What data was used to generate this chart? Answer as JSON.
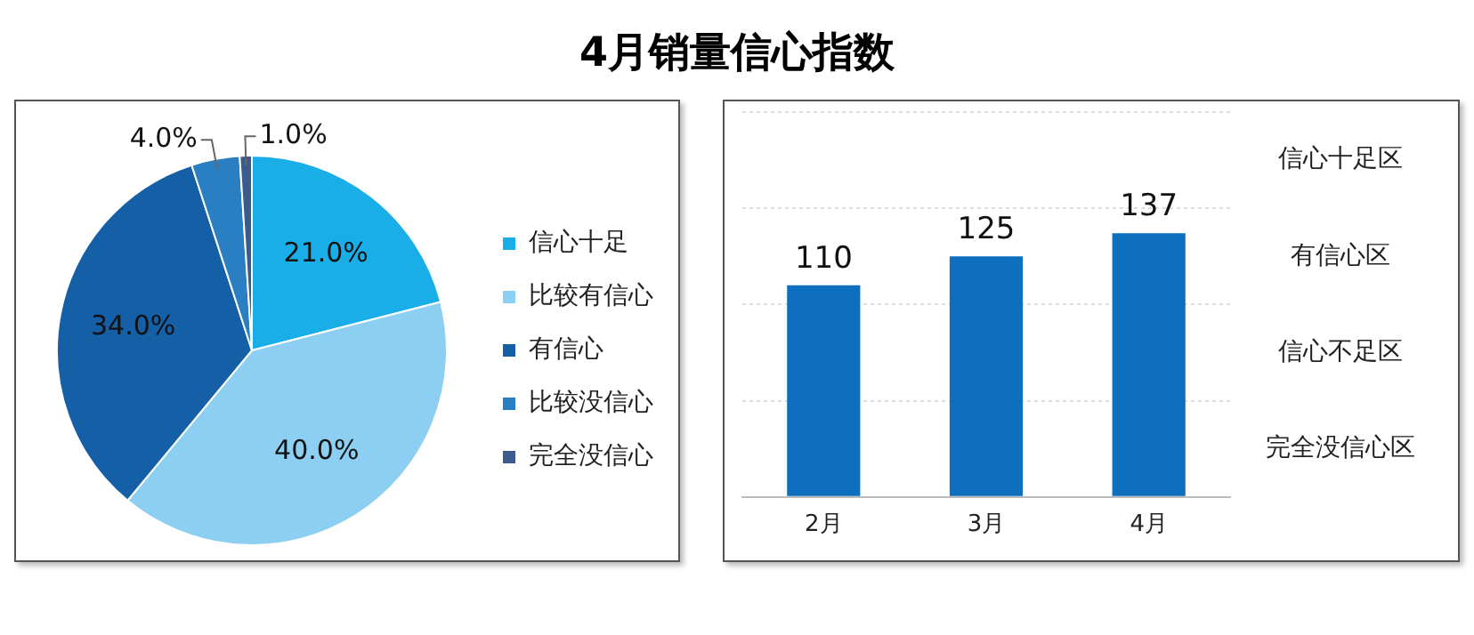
{
  "chart_data": [
    {
      "type": "pie",
      "title": "4月销量信心指数",
      "categories": [
        "信心十足",
        "比较有信心",
        "有信心",
        "比较没信心",
        "完全没信心"
      ],
      "values": [
        21,
        40,
        34,
        4,
        1
      ],
      "colors": [
        "#1aaee8",
        "#8ccff2",
        "#155fa6",
        "#2a7ec2",
        "#3a5b8c"
      ],
      "value_labels": [
        "21.0%",
        "40.0%",
        "34.0%",
        "4.0%",
        "1.0%"
      ],
      "legend": "right"
    },
    {
      "type": "bar",
      "categories": [
        "2月",
        "3月",
        "4月"
      ],
      "values": [
        110,
        125,
        137
      ],
      "color": "#0f6fbf",
      "data_labels": true,
      "relative": false,
      "ylim": [
        0,
        200
      ],
      "yticks": [
        {
          "value": 0,
          "label": null
        },
        {
          "value": 50,
          "label": null
        },
        {
          "value": 100,
          "label": null
        },
        {
          "value": 150,
          "label": null
        },
        {
          "value": 200,
          "label": null
        }
      ],
      "grid": "y",
      "tick_labels": "x",
      "annotations": [
        "信心十足区",
        "有信心区",
        "信心不足区",
        "完全没信心区"
      ]
    }
  ]
}
